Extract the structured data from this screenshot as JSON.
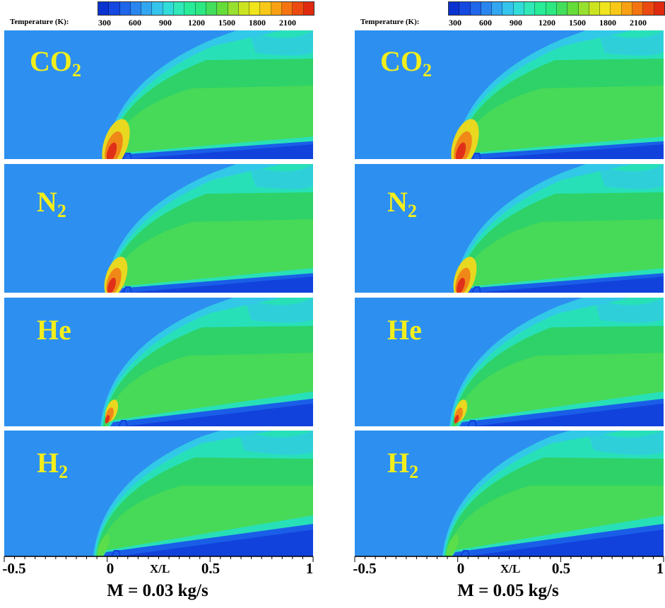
{
  "colorbar": {
    "title": "Temperature (K):",
    "ticks": [
      "300",
      "600",
      "900",
      "1200",
      "1500",
      "1800",
      "2100"
    ],
    "colors": [
      "#0a32d0",
      "#1448e0",
      "#1f66ea",
      "#2a86ee",
      "#32a6f0",
      "#34c4ec",
      "#32dcd8",
      "#30e8b8",
      "#28ec98",
      "#2ce882",
      "#44de5c",
      "#66dc3a",
      "#98e030",
      "#cce420",
      "#f0e41c",
      "#f8c818",
      "#f8a014",
      "#f47412",
      "#ec4a10",
      "#e02a10"
    ]
  },
  "field_colors": {
    "ambient": "#2d8ff0",
    "outer_band": "#32c8e8",
    "mid_band": "#28e0b8",
    "green": "#2ed268",
    "green_light": "#5cde4a",
    "cold_core": "#1a5ee8",
    "cold_deep": "#1242dc",
    "hot_yellow": "#e8d820",
    "hot_orange": "#f08818",
    "hot_red": "#e0301a",
    "label_color": "#f2ee1c"
  },
  "columns": [
    {
      "case_label": "M = 0.03 kg/s",
      "panels": [
        {
          "gas": "CO",
          "sub": "2"
        },
        {
          "gas": "N",
          "sub": "2"
        },
        {
          "gas": "He",
          "sub": ""
        },
        {
          "gas": "H",
          "sub": "2"
        }
      ],
      "xticks": [
        "-0.5",
        "0",
        "0.5",
        "1"
      ],
      "xlabel": "X/L"
    },
    {
      "case_label": "M = 0.05 kg/s",
      "panels": [
        {
          "gas": "CO",
          "sub": "2"
        },
        {
          "gas": "N",
          "sub": "2"
        },
        {
          "gas": "He",
          "sub": ""
        },
        {
          "gas": "H",
          "sub": "2"
        }
      ],
      "xticks": [
        "-0.5",
        "0",
        "0.5",
        "1"
      ],
      "xlabel": "X/L"
    }
  ],
  "chart_data": [
    {
      "type": "heatmap",
      "title": "M = 0.03 kg/s",
      "xlabel": "X/L",
      "x_ticks": [
        -0.5,
        0,
        0.5,
        1
      ],
      "xlim": [
        -0.5,
        1
      ],
      "colorbar_label": "Temperature (K):",
      "colorbar_ticks": [
        300,
        600,
        900,
        1200,
        1500,
        1800,
        2100
      ],
      "panels": [
        "CO2",
        "N2",
        "He",
        "H2"
      ]
    },
    {
      "type": "heatmap",
      "title": "M = 0.05 kg/s",
      "xlabel": "X/L",
      "x_ticks": [
        -0.5,
        0,
        0.5,
        1
      ],
      "xlim": [
        -0.5,
        1
      ],
      "colorbar_label": "Temperature (K):",
      "colorbar_ticks": [
        300,
        600,
        900,
        1200,
        1500,
        1800,
        2100
      ],
      "panels": [
        "CO2",
        "N2",
        "He",
        "H2"
      ]
    }
  ]
}
